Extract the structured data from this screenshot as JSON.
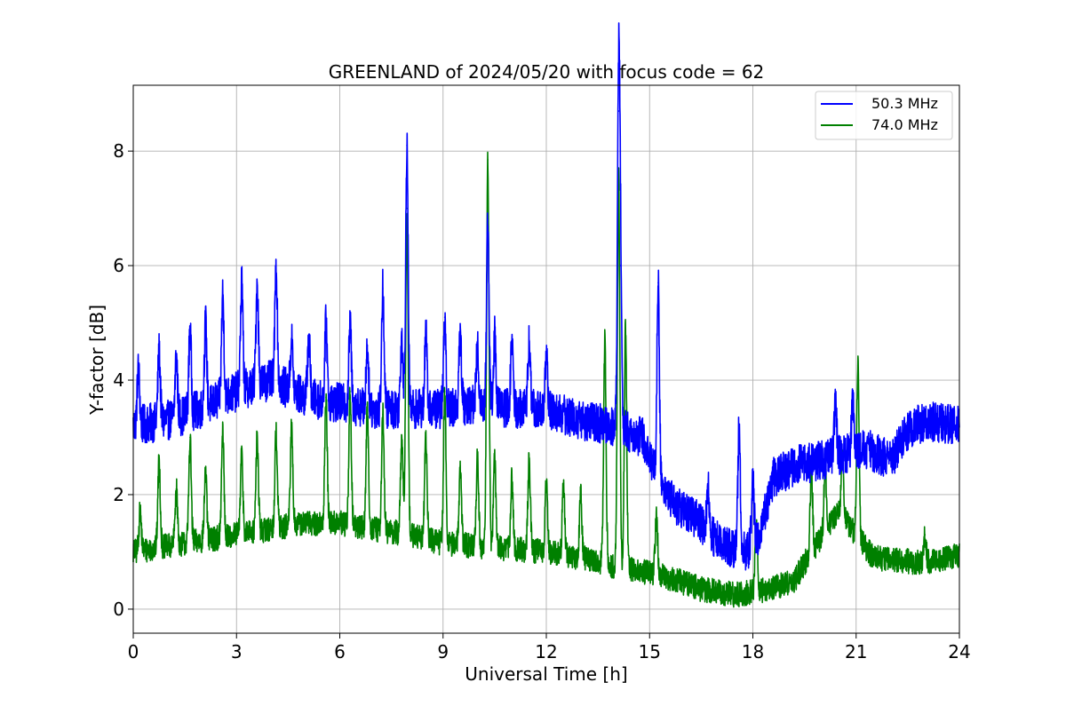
{
  "chart_data": {
    "type": "line",
    "title": "GREENLAND of 2024/05/20 with focus code = 62",
    "xlabel": "Universal Time [h]",
    "ylabel": "Y-factor [dB]",
    "xlim": [
      0,
      24
    ],
    "ylim": [
      -0.42,
      9.15
    ],
    "xticks": [
      0,
      3,
      6,
      9,
      12,
      15,
      18,
      21,
      24
    ],
    "yticks": [
      0,
      2,
      4,
      6,
      8
    ],
    "grid": true,
    "legend_position": "top-right",
    "series": [
      {
        "name": "50.3 MHz",
        "color": "#0000ff",
        "baseline": [
          [
            0,
            3.2
          ],
          [
            1,
            3.3
          ],
          [
            2,
            3.5
          ],
          [
            3,
            3.8
          ],
          [
            4,
            4.0
          ],
          [
            5,
            3.7
          ],
          [
            6,
            3.6
          ],
          [
            7,
            3.5
          ],
          [
            8,
            3.5
          ],
          [
            9,
            3.5
          ],
          [
            10,
            3.6
          ],
          [
            11,
            3.5
          ],
          [
            12,
            3.5
          ],
          [
            13,
            3.3
          ],
          [
            14,
            3.2
          ],
          [
            14.8,
            3.0
          ],
          [
            15.3,
            2.2
          ],
          [
            15.8,
            1.8
          ],
          [
            16.3,
            1.6
          ],
          [
            16.8,
            1.3
          ],
          [
            17.3,
            1.1
          ],
          [
            17.8,
            1.0
          ],
          [
            18.2,
            1.3
          ],
          [
            18.6,
            2.3
          ],
          [
            19.2,
            2.5
          ],
          [
            20,
            2.6
          ],
          [
            20.5,
            2.7
          ],
          [
            21.3,
            2.8
          ],
          [
            22,
            2.6
          ],
          [
            22.5,
            3.1
          ],
          [
            23,
            3.3
          ],
          [
            24,
            3.2
          ]
        ],
        "noise": 0.35,
        "spikes": [
          [
            0.15,
            4.2
          ],
          [
            0.75,
            4.5
          ],
          [
            1.25,
            4.4
          ],
          [
            1.65,
            4.9
          ],
          [
            2.1,
            5.0
          ],
          [
            2.6,
            5.5
          ],
          [
            3.15,
            5.7
          ],
          [
            3.6,
            5.7
          ],
          [
            4.15,
            6.0
          ],
          [
            4.6,
            4.7
          ],
          [
            5.1,
            4.8
          ],
          [
            5.6,
            5.0
          ],
          [
            6.3,
            5.0
          ],
          [
            6.8,
            4.6
          ],
          [
            7.25,
            5.6
          ],
          [
            7.8,
            4.8
          ],
          [
            7.95,
            8.1
          ],
          [
            8.5,
            4.8
          ],
          [
            9.05,
            5.1
          ],
          [
            9.5,
            4.8
          ],
          [
            10.0,
            4.6
          ],
          [
            10.3,
            6.8
          ],
          [
            10.5,
            4.8
          ],
          [
            11.0,
            4.7
          ],
          [
            11.5,
            4.7
          ],
          [
            12.0,
            4.4
          ],
          [
            14.1,
            8.7
          ],
          [
            14.15,
            6.0
          ],
          [
            15.25,
            5.7
          ],
          [
            16.7,
            2.1
          ],
          [
            17.6,
            3.2
          ],
          [
            18.0,
            2.2
          ],
          [
            20.4,
            3.6
          ],
          [
            20.9,
            3.6
          ]
        ]
      },
      {
        "name": "74.0 MHz",
        "color": "#008000",
        "baseline": [
          [
            0,
            1.0
          ],
          [
            1,
            1.1
          ],
          [
            2,
            1.2
          ],
          [
            3,
            1.3
          ],
          [
            4,
            1.4
          ],
          [
            5,
            1.5
          ],
          [
            6,
            1.5
          ],
          [
            7,
            1.4
          ],
          [
            8,
            1.3
          ],
          [
            9,
            1.15
          ],
          [
            10,
            1.1
          ],
          [
            11,
            1.05
          ],
          [
            12,
            1.0
          ],
          [
            13,
            0.9
          ],
          [
            14,
            0.75
          ],
          [
            14.5,
            0.7
          ],
          [
            15.3,
            0.6
          ],
          [
            15.8,
            0.5
          ],
          [
            16.5,
            0.35
          ],
          [
            17.5,
            0.25
          ],
          [
            18.5,
            0.35
          ],
          [
            19.2,
            0.5
          ],
          [
            19.7,
            1.0
          ],
          [
            20.5,
            1.7
          ],
          [
            21.0,
            1.3
          ],
          [
            21.5,
            0.9
          ],
          [
            23,
            0.8
          ],
          [
            24,
            0.95
          ]
        ],
        "noise": 0.22,
        "spikes": [
          [
            0.2,
            1.7
          ],
          [
            0.75,
            2.6
          ],
          [
            1.25,
            2.1
          ],
          [
            1.65,
            3.0
          ],
          [
            2.1,
            2.4
          ],
          [
            2.6,
            3.1
          ],
          [
            3.15,
            2.7
          ],
          [
            3.6,
            3.0
          ],
          [
            4.15,
            3.1
          ],
          [
            4.6,
            3.2
          ],
          [
            5.6,
            3.7
          ],
          [
            6.3,
            3.8
          ],
          [
            6.8,
            3.5
          ],
          [
            7.25,
            3.4
          ],
          [
            7.8,
            3.0
          ],
          [
            7.95,
            7.0
          ],
          [
            8.5,
            3.0
          ],
          [
            9.05,
            3.8
          ],
          [
            9.5,
            2.5
          ],
          [
            10.0,
            2.7
          ],
          [
            10.3,
            7.85
          ],
          [
            10.5,
            2.6
          ],
          [
            11.0,
            2.3
          ],
          [
            11.5,
            2.6
          ],
          [
            12.0,
            2.2
          ],
          [
            12.5,
            2.2
          ],
          [
            13.0,
            2.0
          ],
          [
            13.7,
            4.7
          ],
          [
            14.1,
            7.5
          ],
          [
            14.3,
            4.9
          ],
          [
            15.2,
            1.6
          ],
          [
            18.1,
            1.4
          ],
          [
            19.7,
            2.5
          ],
          [
            20.1,
            2.5
          ],
          [
            20.6,
            2.7
          ],
          [
            21.05,
            4.25
          ],
          [
            23.0,
            1.3
          ]
        ]
      }
    ]
  }
}
